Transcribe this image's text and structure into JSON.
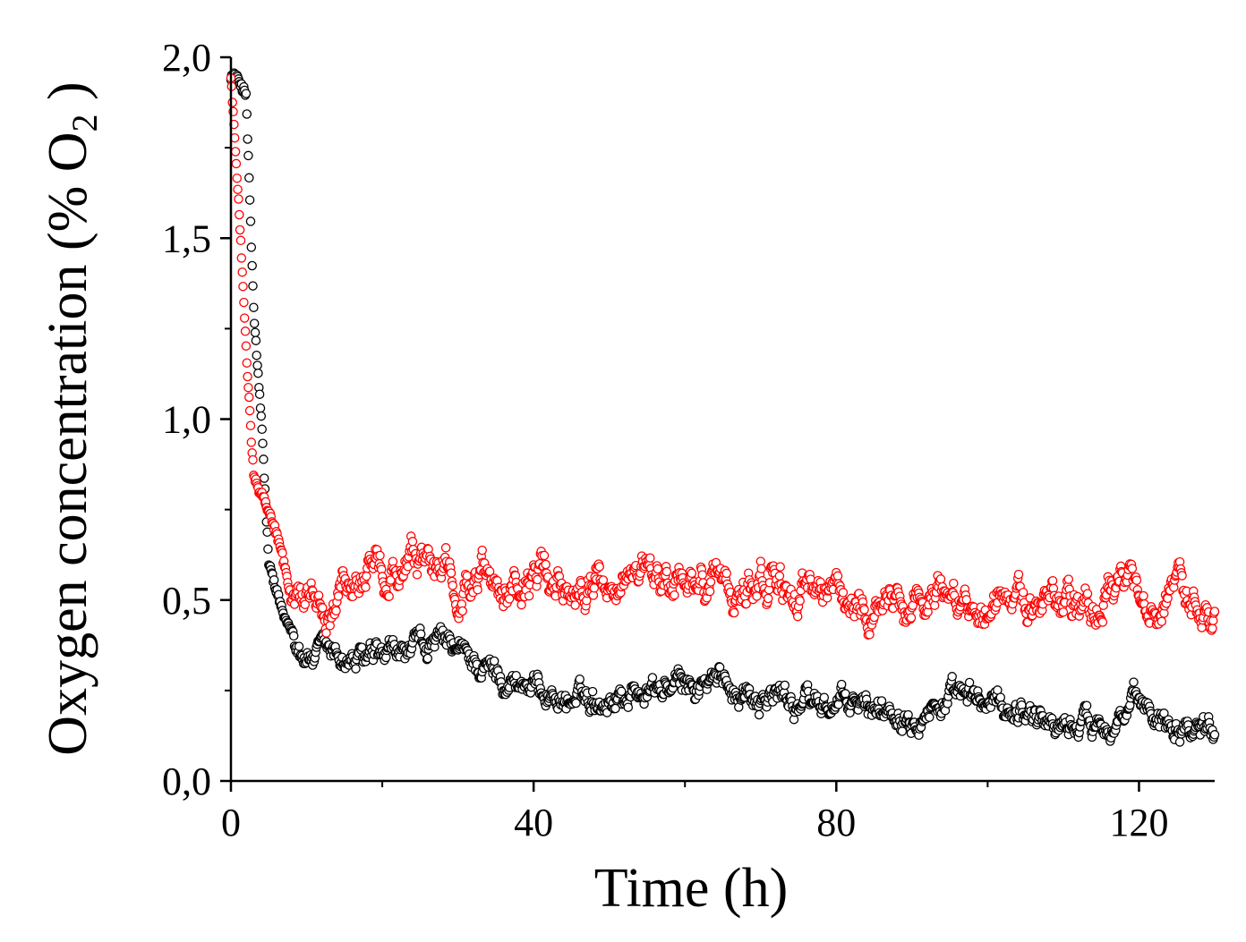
{
  "chart_data": {
    "type": "scatter",
    "title": "",
    "xlabel": "Time (h)",
    "ylabel": {
      "prefix": "Oxygen concentration (% O",
      "subscript": "2",
      "suffix": " )"
    },
    "xlim": [
      0,
      130
    ],
    "ylim": [
      0,
      2.0
    ],
    "x_ticks": [
      0,
      40,
      80,
      120
    ],
    "x_tick_labels": [
      "0",
      "40",
      "80",
      "120"
    ],
    "x_minor_ticks": [
      20,
      60,
      100
    ],
    "y_ticks": [
      0,
      0.5,
      1.0,
      1.5,
      2.0
    ],
    "y_tick_labels": [
      "0,0",
      "0,5",
      "1,0",
      "1,5",
      "2,0"
    ],
    "y_minor_ticks": [
      0.25,
      0.75,
      1.25,
      1.75
    ],
    "marker": "open-circle",
    "sampling_interval_h": 0.1,
    "series": [
      {
        "name": "black",
        "color": "#000000",
        "description_of_trend": "rapid decay from ~1.95 to ~0.35 within ~10 h, then slow decline to ~0.2 with scatter",
        "key_points": [
          [
            0.5,
            1.95
          ],
          [
            2.0,
            1.9
          ],
          [
            3.0,
            1.3
          ],
          [
            4.0,
            1.0
          ],
          [
            5.0,
            0.6
          ],
          [
            7.0,
            0.45
          ],
          [
            10.0,
            0.35
          ],
          [
            20.0,
            0.32
          ],
          [
            27.0,
            0.38
          ],
          [
            35.0,
            0.3
          ],
          [
            45.0,
            0.22
          ],
          [
            55.0,
            0.25
          ],
          [
            65.0,
            0.27
          ],
          [
            75.0,
            0.22
          ],
          [
            85.0,
            0.2
          ],
          [
            95.0,
            0.22
          ],
          [
            105.0,
            0.2
          ],
          [
            110.0,
            0.15
          ],
          [
            120.0,
            0.2
          ],
          [
            130.0,
            0.15
          ]
        ],
        "noise_amplitude": 0.07
      },
      {
        "name": "red",
        "color": "#ff0000",
        "description_of_trend": "rapid decay from ~1.95 to ~0.55 within ~8 h, then fluctuates around 0.5-0.55",
        "key_points": [
          [
            0.0,
            1.95
          ],
          [
            1.0,
            1.6
          ],
          [
            2.0,
            1.2
          ],
          [
            3.0,
            0.85
          ],
          [
            5.0,
            0.75
          ],
          [
            6.5,
            0.65
          ],
          [
            8.0,
            0.5
          ],
          [
            15.0,
            0.52
          ],
          [
            25.0,
            0.57
          ],
          [
            35.0,
            0.55
          ],
          [
            45.0,
            0.55
          ],
          [
            55.0,
            0.55
          ],
          [
            65.0,
            0.55
          ],
          [
            75.0,
            0.52
          ],
          [
            85.0,
            0.5
          ],
          [
            95.0,
            0.52
          ],
          [
            105.0,
            0.5
          ],
          [
            115.0,
            0.5
          ],
          [
            125.0,
            0.52
          ],
          [
            130.0,
            0.5
          ]
        ],
        "noise_amplitude": 0.1
      }
    ]
  }
}
